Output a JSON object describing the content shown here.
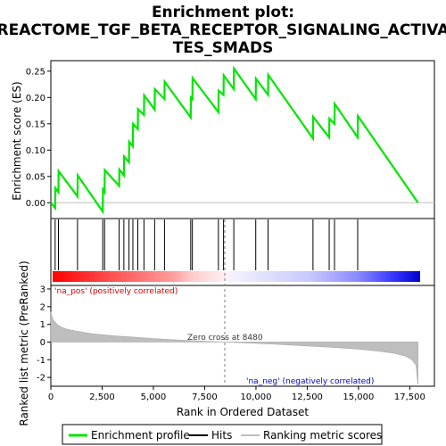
{
  "chart_data": {
    "type": "line",
    "title_line1": "Enrichment plot:",
    "title_line2": "REACTOME_TGF_BETA_RECEPTOR_SIGNALING_ACTIVA",
    "title_line3": "TES_SMADS",
    "top_panel": {
      "ylabel": "Enrichment score (ES)",
      "ylim": [
        -0.03,
        0.27
      ],
      "yticks": [
        0.0,
        0.05,
        0.1,
        0.15,
        0.2,
        0.25
      ],
      "ytick_labels": [
        "0.00",
        "0.05",
        "0.10",
        "0.15",
        "0.20",
        "0.25"
      ],
      "series": [
        {
          "name": "Enrichment profile",
          "color": "#00e600",
          "x": [
            0,
            210,
            220,
            370,
            380,
            1300,
            1310,
            2530,
            2540,
            2620,
            2630,
            3330,
            3340,
            3560,
            3570,
            3810,
            3820,
            4000,
            4010,
            4240,
            4250,
            4540,
            4550,
            5060,
            5070,
            5540,
            5550,
            6820,
            6830,
            6900,
            6910,
            8170,
            8180,
            8420,
            8430,
            8920,
            8930,
            9990,
            10000,
            10590,
            10600,
            12780,
            12790,
            13570,
            13580,
            13830,
            13840,
            14960,
            14970,
            17900
          ],
          "y": [
            0.0,
            -0.01,
            0.028,
            0.02,
            0.06,
            0.012,
            0.052,
            -0.017,
            0.025,
            0.02,
            0.062,
            0.032,
            0.063,
            0.052,
            0.088,
            0.077,
            0.116,
            0.107,
            0.15,
            0.14,
            0.178,
            0.167,
            0.204,
            0.177,
            0.216,
            0.197,
            0.23,
            0.162,
            0.2,
            0.197,
            0.237,
            0.172,
            0.213,
            0.205,
            0.242,
            0.216,
            0.255,
            0.197,
            0.236,
            0.205,
            0.243,
            0.122,
            0.163,
            0.124,
            0.16,
            0.15,
            0.188,
            0.124,
            0.165,
            0.0
          ]
        }
      ]
    },
    "hits_panel": {
      "name": "Hits",
      "hit_positions": [
        210,
        370,
        1300,
        2530,
        2620,
        3330,
        3560,
        3810,
        4000,
        4240,
        4540,
        5060,
        5540,
        6820,
        6900,
        8170,
        8420,
        8920,
        9990,
        10590,
        12780,
        13570,
        13830,
        14960
      ]
    },
    "bottom_panel": {
      "ylabel": "Ranked list metric (PreRanked)",
      "xlabel": "Rank in Ordered Dataset",
      "ylim": [
        -2.5,
        3.2
      ],
      "yticks": [
        -2,
        -1,
        0,
        1,
        2,
        3
      ],
      "ytick_labels": [
        "-2",
        "-1",
        "0",
        "1",
        "2",
        "3"
      ],
      "xlim": [
        0,
        18700
      ],
      "xticks": [
        0,
        2500,
        5000,
        7500,
        10000,
        12500,
        15000,
        17500
      ],
      "xtick_labels": [
        "0",
        "2,500",
        "5,000",
        "7,500",
        "10,000",
        "12,500",
        "15,000",
        "17,500"
      ],
      "zero_cross": 8480,
      "zero_cross_label": "Zero cross at 8480",
      "pos_label": "'na_pos' (positively correlated)",
      "neg_label": "'na_neg' (negatively correlated)",
      "metric_profile": {
        "name": "Ranking metric scores",
        "x": [
          0,
          50,
          150,
          300,
          500,
          800,
          1200,
          2000,
          3000,
          4000,
          5000,
          6000,
          7000,
          8000,
          8480,
          9000,
          10000,
          11000,
          12000,
          13000,
          14000,
          15000,
          16000,
          16800,
          17300,
          17600,
          17800,
          17900
        ],
        "y": [
          1.7,
          1.45,
          1.2,
          1.0,
          0.85,
          0.72,
          0.62,
          0.47,
          0.36,
          0.28,
          0.2,
          0.13,
          0.07,
          0.02,
          0.0,
          -0.03,
          -0.08,
          -0.13,
          -0.19,
          -0.25,
          -0.32,
          -0.4,
          -0.52,
          -0.65,
          -0.8,
          -1.0,
          -1.3,
          -2.4
        ]
      }
    },
    "legend": [
      {
        "label": "Enrichment profile",
        "color": "#00e600"
      },
      {
        "label": "Hits",
        "color": "#000000"
      },
      {
        "label": "Ranking metric scores",
        "color": "#bebebe"
      }
    ],
    "colors": {
      "positive_text": "#cc0000",
      "negative_text": "#0000cc",
      "metric_fill": "#bebebe",
      "zero_cross_line": "#808080"
    }
  }
}
